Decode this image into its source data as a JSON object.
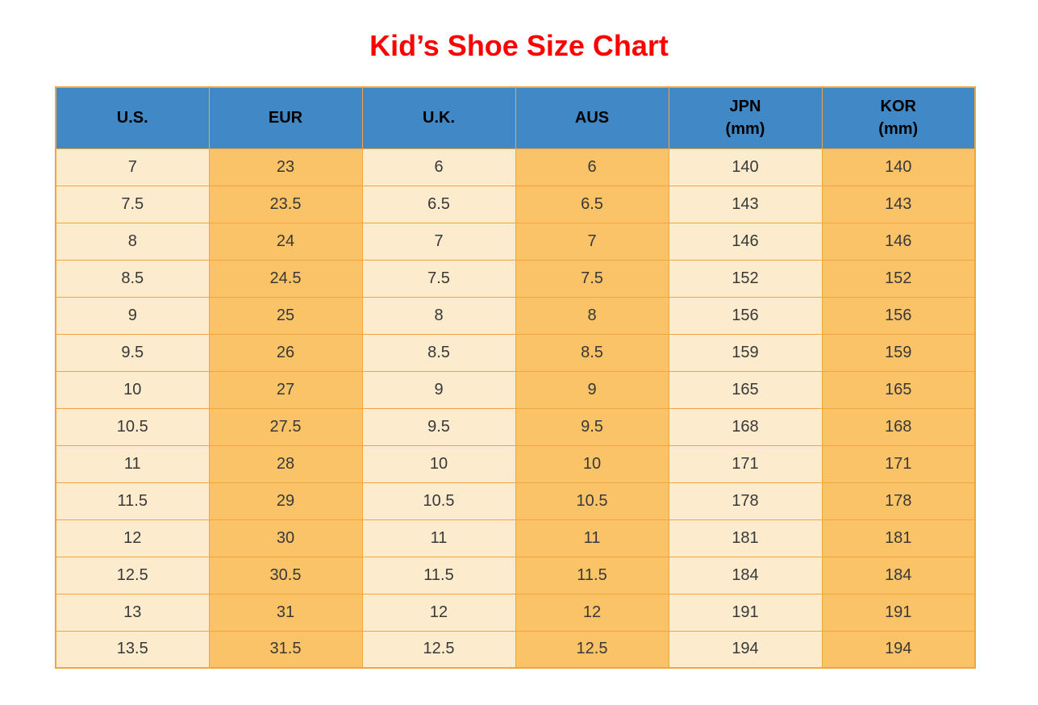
{
  "page": {
    "title": "Kid’s Shoe Size Chart"
  },
  "colors": {
    "title_red": "#FE0000",
    "header_blue": "#4189C6",
    "cell_light": "#FDEBCD",
    "cell_orange": "#FBC367",
    "grid_orange": "#F0A53D",
    "body_text": "#383838",
    "header_text": "#000000"
  },
  "chart_data": {
    "type": "table",
    "title": "Kid’s Shoe Size Chart",
    "columns": [
      {
        "label": "U.S.",
        "sublabel": ""
      },
      {
        "label": "EUR",
        "sublabel": ""
      },
      {
        "label": "U.K.",
        "sublabel": ""
      },
      {
        "label": "AUS",
        "sublabel": ""
      },
      {
        "label": "JPN",
        "sublabel": "(mm)"
      },
      {
        "label": "KOR",
        "sublabel": "(mm)"
      }
    ],
    "rows": [
      [
        "7",
        "23",
        "6",
        "6",
        "140",
        "140"
      ],
      [
        "7.5",
        "23.5",
        "6.5",
        "6.5",
        "143",
        "143"
      ],
      [
        "8",
        "24",
        "7",
        "7",
        "146",
        "146"
      ],
      [
        "8.5",
        "24.5",
        "7.5",
        "7.5",
        "152",
        "152"
      ],
      [
        "9",
        "25",
        "8",
        "8",
        "156",
        "156"
      ],
      [
        "9.5",
        "26",
        "8.5",
        "8.5",
        "159",
        "159"
      ],
      [
        "10",
        "27",
        "9",
        "9",
        "165",
        "165"
      ],
      [
        "10.5",
        "27.5",
        "9.5",
        "9.5",
        "168",
        "168"
      ],
      [
        "11",
        "28",
        "10",
        "10",
        "171",
        "171"
      ],
      [
        "11.5",
        "29",
        "10.5",
        "10.5",
        "178",
        "178"
      ],
      [
        "12",
        "30",
        "11",
        "11",
        "181",
        "181"
      ],
      [
        "12.5",
        "30.5",
        "11.5",
        "11.5",
        "184",
        "184"
      ],
      [
        "13",
        "31",
        "12",
        "12",
        "191",
        "191"
      ],
      [
        "13.5",
        "31.5",
        "12.5",
        "12.5",
        "194",
        "194"
      ]
    ]
  }
}
